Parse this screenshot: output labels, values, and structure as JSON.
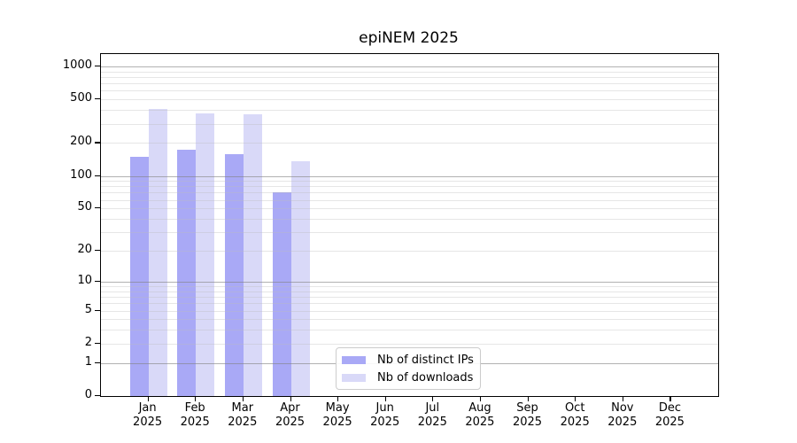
{
  "title": "epiNEM 2025",
  "chart_data": {
    "type": "bar",
    "title": "epiNEM 2025",
    "x_year": "2025",
    "categories": [
      "Jan",
      "Feb",
      "Mar",
      "Apr",
      "May",
      "Jun",
      "Jul",
      "Aug",
      "Sep",
      "Oct",
      "Nov",
      "Dec"
    ],
    "series": [
      {
        "name": "Nb of distinct IPs",
        "color": "#a9a9f6",
        "values": [
          150,
          173,
          158,
          70,
          null,
          null,
          null,
          null,
          null,
          null,
          null,
          null
        ]
      },
      {
        "name": "Nb of downloads",
        "color": "#d9d9f8",
        "values": [
          413,
          372,
          366,
          136,
          null,
          null,
          null,
          null,
          null,
          null,
          null,
          null
        ]
      }
    ],
    "yscale": "log10(1+x)",
    "yticks": [
      0,
      1,
      2,
      5,
      10,
      20,
      50,
      100,
      200,
      500,
      1000
    ],
    "major_grid_values": [
      1,
      10,
      100,
      1000
    ],
    "ylim": [
      0,
      1270
    ],
    "grid": true,
    "legend_position": "lower center",
    "bar_colors": {
      "distinct_ips": "#a9a9f6",
      "downloads": "#d9d9f8"
    }
  }
}
